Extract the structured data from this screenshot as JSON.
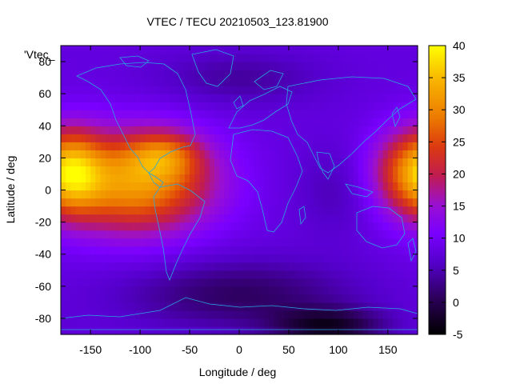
{
  "chart_data": {
    "type": "heatmap",
    "title": "VTEC / TECU 20210503_123.81900",
    "xlabel": "Longitude / deg",
    "ylabel": "Latitude / deg",
    "xlim": [
      -180,
      180
    ],
    "ylim": [
      -90,
      90
    ],
    "x_ticks": [
      "-150",
      "-100",
      "-50",
      "0",
      "50",
      "100",
      "150"
    ],
    "y_ticks": [
      "-80",
      "-60",
      "-40",
      "-20",
      "0",
      "20",
      "40",
      "60",
      "80"
    ],
    "colorbar": {
      "range": [
        -5,
        40
      ],
      "ticks": [
        "-5",
        "0",
        "5",
        "10",
        "15",
        "20",
        "25",
        "30",
        "35",
        "40"
      ]
    },
    "legend_entry": "'Vtec_",
    "background_value": 8,
    "hotspots": [
      {
        "lon": -105,
        "lat": 5,
        "value": 32,
        "spread_lon": 55,
        "spread_lat": 22
      },
      {
        "lon": -75,
        "lat": 22,
        "value": 18,
        "spread_lon": 25,
        "spread_lat": 10
      },
      {
        "lon": 172,
        "lat": 12,
        "value": 22,
        "spread_lon": 28,
        "spread_lat": 18
      },
      {
        "lon": -165,
        "lat": 12,
        "value": 18,
        "spread_lon": 20,
        "spread_lat": 18
      },
      {
        "lon": 0,
        "lat": 70,
        "value": 4,
        "spread_lon": 60,
        "spread_lat": 12
      },
      {
        "lon": 0,
        "lat": -65,
        "value": 1,
        "spread_lon": 80,
        "spread_lat": 15
      },
      {
        "lon": 90,
        "lat": -85,
        "value": -2,
        "spread_lon": 40,
        "spread_lat": 8
      },
      {
        "lon": 100,
        "lat": 0,
        "value": 5,
        "spread_lon": 30,
        "spread_lat": 20
      }
    ]
  }
}
